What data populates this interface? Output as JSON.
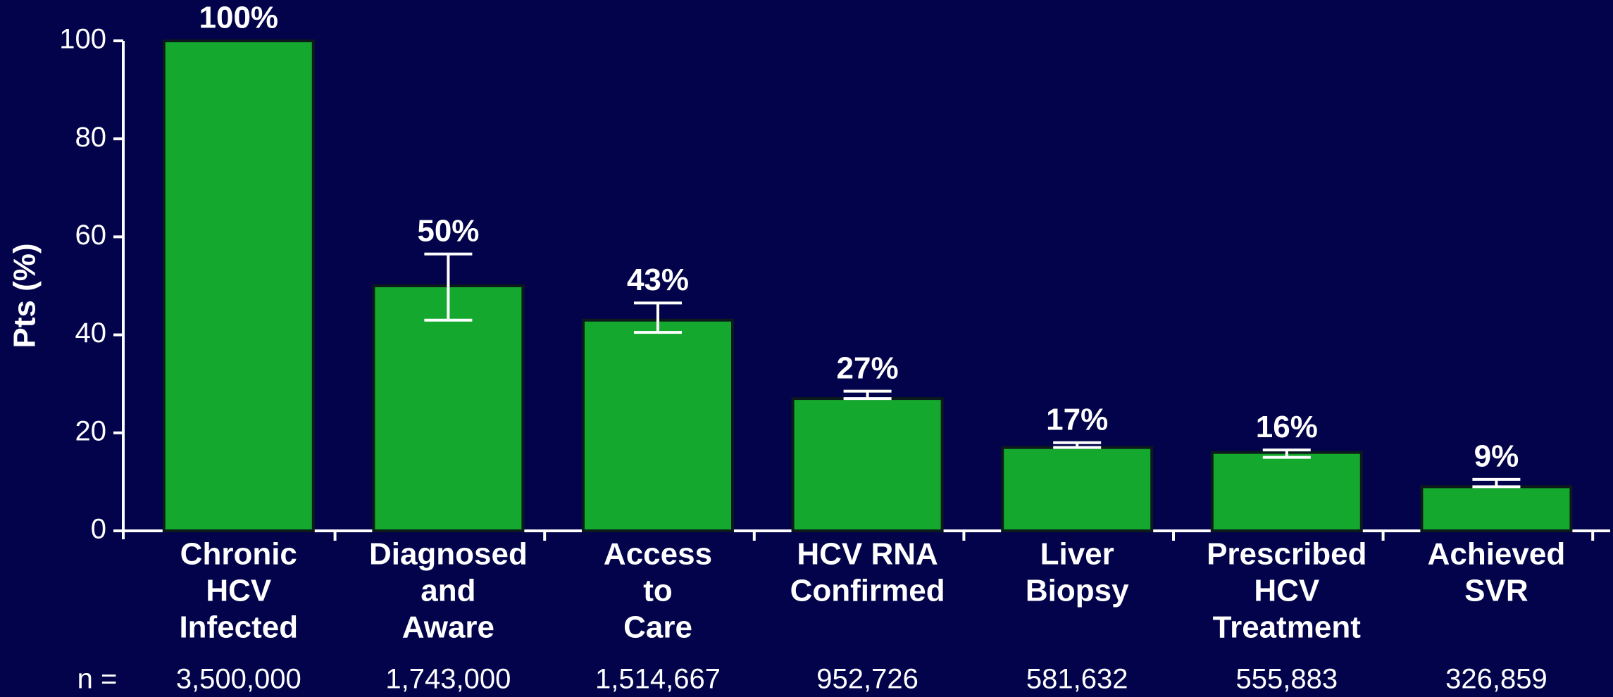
{
  "chart_data": {
    "type": "bar",
    "y_label": "Pts (%)",
    "categories": [
      [
        "Chronic",
        "HCV",
        "Infected"
      ],
      [
        "Diagnosed",
        "and",
        "Aware"
      ],
      [
        "Access",
        "to",
        "Care"
      ],
      [
        "HCV RNA",
        "Confirmed"
      ],
      [
        "Liver",
        "Biopsy"
      ],
      [
        "Prescribed",
        "HCV",
        "Treatment"
      ],
      [
        "Achieved",
        "SVR"
      ]
    ],
    "values": [
      100,
      50,
      43,
      27,
      17,
      16,
      9
    ],
    "value_labels": [
      "100%",
      "50%",
      "43%",
      "27%",
      "17%",
      "16%",
      "9%"
    ],
    "error_lower": [
      null,
      43,
      40.5,
      27,
      17,
      15,
      9
    ],
    "error_upper": [
      null,
      56.5,
      46.5,
      28.5,
      18,
      16.5,
      10.5
    ],
    "color": "#15a82e",
    "ylim": [
      0,
      100
    ],
    "yticks": [
      0,
      20,
      40,
      60,
      80,
      100
    ],
    "n_label": "n =",
    "n": [
      "3,500,000",
      "1,743,000",
      "1,514,667",
      "952,726",
      "581,632",
      "555,883",
      "326,859"
    ]
  }
}
